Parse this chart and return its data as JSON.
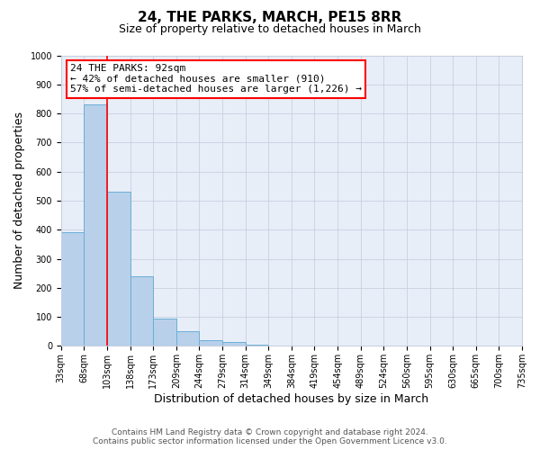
{
  "title": "24, THE PARKS, MARCH, PE15 8RR",
  "subtitle": "Size of property relative to detached houses in March",
  "xlabel": "Distribution of detached houses by size in March",
  "ylabel": "Number of detached properties",
  "bin_labels": [
    "33sqm",
    "68sqm",
    "103sqm",
    "138sqm",
    "173sqm",
    "209sqm",
    "244sqm",
    "279sqm",
    "314sqm",
    "349sqm",
    "384sqm",
    "419sqm",
    "454sqm",
    "489sqm",
    "524sqm",
    "560sqm",
    "595sqm",
    "630sqm",
    "665sqm",
    "700sqm",
    "735sqm"
  ],
  "bar_heights": [
    390,
    830,
    530,
    240,
    95,
    50,
    20,
    15,
    5,
    0,
    0,
    0,
    0,
    0,
    0,
    0,
    0,
    0,
    0,
    0
  ],
  "bar_color": "#b8d0ea",
  "bar_edge_color": "#6aaed6",
  "vline_x": 2,
  "vline_color": "red",
  "ylim": [
    0,
    1000
  ],
  "yticks": [
    0,
    100,
    200,
    300,
    400,
    500,
    600,
    700,
    800,
    900,
    1000
  ],
  "annotation_title": "24 THE PARKS: 92sqm",
  "annotation_line1": "← 42% of detached houses are smaller (910)",
  "annotation_line2": "57% of semi-detached houses are larger (1,226) →",
  "annotation_box_color": "white",
  "annotation_box_edge_color": "red",
  "footer_line1": "Contains HM Land Registry data © Crown copyright and database right 2024.",
  "footer_line2": "Contains public sector information licensed under the Open Government Licence v3.0.",
  "background_color": "#e8eef8",
  "grid_color": "#c8d0e0",
  "title_fontsize": 11,
  "subtitle_fontsize": 9,
  "axis_label_fontsize": 9,
  "tick_fontsize": 7,
  "annotation_fontsize": 8,
  "footer_fontsize": 6.5
}
